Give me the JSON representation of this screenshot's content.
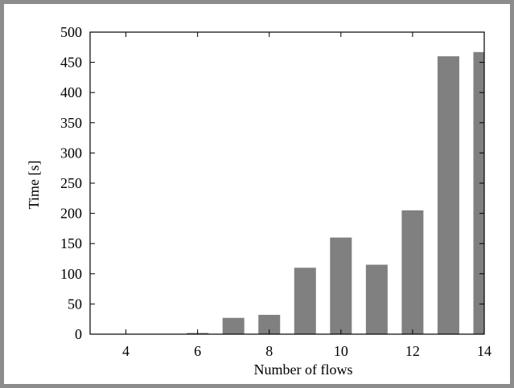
{
  "chart_data": {
    "type": "bar",
    "x": [
      4,
      5,
      6,
      7,
      8,
      9,
      10,
      11,
      12,
      13,
      14
    ],
    "values": [
      0,
      0,
      2,
      27,
      32,
      110,
      160,
      115,
      205,
      460,
      467
    ],
    "xlabel": "Number of flows",
    "ylabel": "Time [s]",
    "xlim": [
      3,
      14
    ],
    "ylim": [
      0,
      500
    ],
    "xticks": [
      4,
      6,
      8,
      10,
      12,
      14
    ],
    "yticks": [
      0,
      50,
      100,
      150,
      200,
      250,
      300,
      350,
      400,
      450,
      500
    ],
    "bar_color": "#808080",
    "grid": false,
    "legend": "none"
  }
}
